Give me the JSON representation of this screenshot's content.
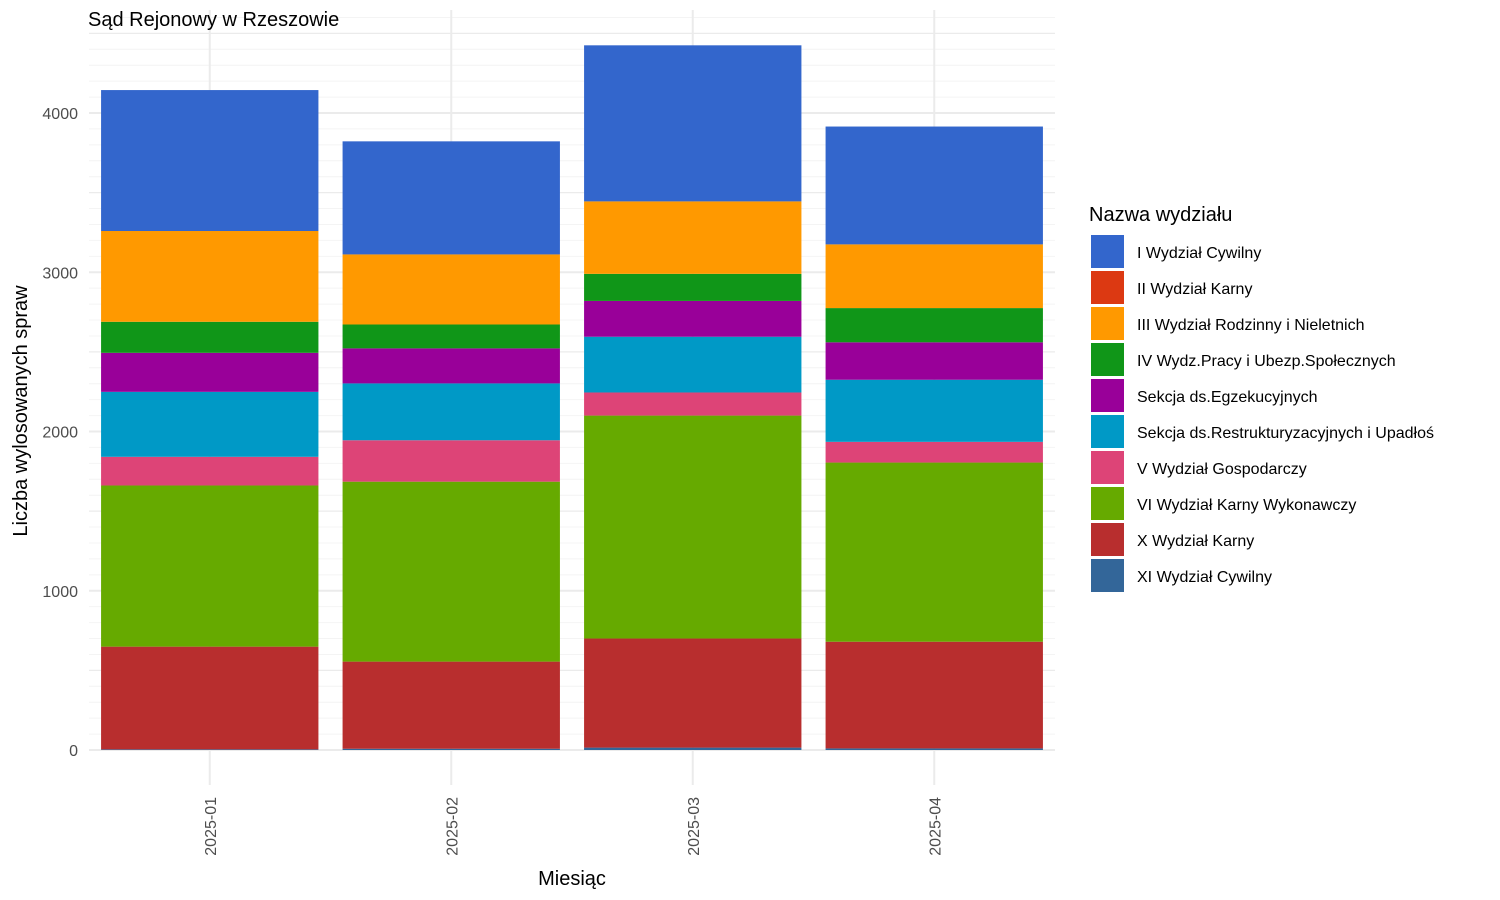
{
  "chart_data": {
    "type": "bar",
    "stacked": true,
    "title": "Sąd Rejonowy w Rzeszowie",
    "xlabel": "Miesiąc",
    "ylabel": "Liczba wylosowanych spraw",
    "categories": [
      "2025-01",
      "2025-02",
      "2025-03",
      "2025-04"
    ],
    "ylim": [
      0,
      4600
    ],
    "yticks": [
      0,
      1000,
      2000,
      3000,
      4000
    ],
    "grid": true,
    "legend_position": "right",
    "legend_title": "Nazwa wydziału",
    "series": [
      {
        "name": "XI Wydział Cywilny",
        "color": "#336699",
        "values": [
          4,
          8,
          15,
          10
        ]
      },
      {
        "name": "X Wydział Karny",
        "color": "#B82E2E",
        "values": [
          645,
          547,
          685,
          670
        ]
      },
      {
        "name": "VI Wydział Karny Wykonawczy",
        "color": "#66AA00",
        "values": [
          1012,
          1130,
          1400,
          1125
        ]
      },
      {
        "name": "V Wydział Gospodarczy",
        "color": "#DD4477",
        "values": [
          180,
          260,
          145,
          130
        ]
      },
      {
        "name": "Sekcja ds.Restrukturyzacyjnych i Upadłoś",
        "color": "#0099C6",
        "values": [
          408,
          357,
          350,
          390
        ]
      },
      {
        "name": "Sekcja ds.Egzekucyjnych",
        "color": "#990099",
        "values": [
          245,
          220,
          225,
          235
        ]
      },
      {
        "name": "IV Wydz.Pracy i Ubezp.Społecznych",
        "color": "#109618",
        "values": [
          195,
          150,
          170,
          215
        ]
      },
      {
        "name": "III Wydział Rodzinny i Nieletnich",
        "color": "#FF9900",
        "values": [
          570,
          440,
          455,
          400
        ]
      },
      {
        "name": "II Wydział Karny",
        "color": "#DC3912",
        "values": [
          0,
          0,
          0,
          0
        ]
      },
      {
        "name": "I Wydział Cywilny",
        "color": "#3366CC",
        "values": [
          885,
          710,
          980,
          740
        ]
      }
    ],
    "legend_order": [
      "I Wydział Cywilny",
      "II Wydział Karny",
      "III Wydział Rodzinny i Nieletnich",
      "IV Wydz.Pracy i Ubezp.Społecznych",
      "Sekcja ds.Egzekucyjnych",
      "Sekcja ds.Restrukturyzacyjnych i Upadłoś",
      "V Wydział Gospodarczy",
      "VI Wydział Karny Wykonawczy",
      "X Wydział Karny",
      "XI Wydział Cywilny"
    ],
    "colors": {
      "grid_major": "#EBEBEB",
      "grid_minor": "#F4F4F4",
      "tick_text": "#4D4D4D"
    }
  }
}
